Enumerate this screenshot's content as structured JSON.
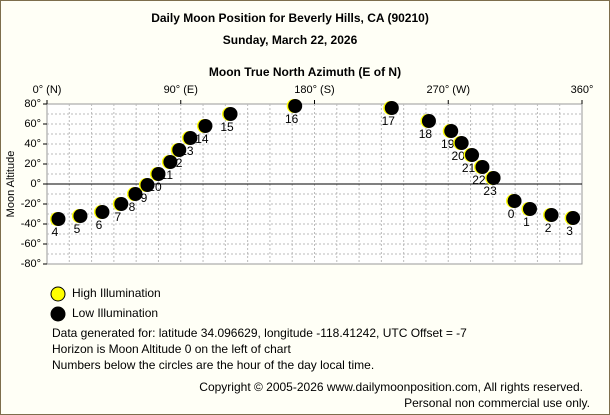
{
  "chart_data": {
    "type": "scatter",
    "title": "Daily Moon Position for Beverly Hills, CA (90210)",
    "subtitle": "Sunday, March 22, 2026",
    "x_label": "Moon True North Azimuth (E of N)",
    "y_label": "Moon Altitude",
    "xlim": [
      0,
      360
    ],
    "ylim": [
      -80,
      80
    ],
    "xticks": [
      {
        "value": 0,
        "label": "0° (N)"
      },
      {
        "value": 90,
        "label": "90° (E)"
      },
      {
        "value": 180,
        "label": "180° (S)"
      },
      {
        "value": 270,
        "label": "270° (W)"
      },
      {
        "value": 360,
        "label": "360°"
      }
    ],
    "yticks": [
      {
        "value": 80,
        "label": "80°"
      },
      {
        "value": 60,
        "label": "60°"
      },
      {
        "value": 40,
        "label": "40°"
      },
      {
        "value": 20,
        "label": "20°"
      },
      {
        "value": 0,
        "label": "0°"
      },
      {
        "value": -20,
        "label": "-20°"
      },
      {
        "value": -40,
        "label": "-40°"
      },
      {
        "value": -60,
        "label": "-60°"
      },
      {
        "value": -80,
        "label": "-80°"
      }
    ],
    "xgrid": [
      15,
      30,
      45,
      60,
      75,
      90,
      105,
      120,
      135,
      150,
      165,
      180,
      195,
      210,
      225,
      240,
      255,
      270,
      285,
      300,
      315,
      330,
      345
    ],
    "ygrid": [
      70,
      60,
      50,
      40,
      30,
      20,
      10,
      -10,
      -20,
      -30,
      -40,
      -50,
      -60,
      -70
    ],
    "horizon": 0,
    "legend": [
      {
        "name": "High Illumination",
        "color": "#ffff00"
      },
      {
        "name": "Low Illumination",
        "color": "#000000"
      }
    ],
    "points": {
      "labels": [
        "4",
        "5",
        "6",
        "7",
        "8",
        "9",
        "10",
        "11",
        "12",
        "13",
        "14",
        "15",
        "16",
        "17",
        "18",
        "19",
        "20",
        "21",
        "22",
        "23",
        "0",
        "1",
        "2",
        "3"
      ],
      "x": [
        6.7,
        21.5,
        36.3,
        49,
        58.5,
        66.6,
        74,
        82,
        88,
        95.5,
        105.6,
        122.5,
        166,
        231,
        256,
        271,
        278,
        285,
        292,
        299.5,
        313.6,
        324,
        338.5,
        353
      ],
      "y": [
        -35,
        -32,
        -28,
        -20,
        -10,
        -1,
        10,
        22,
        34,
        46,
        58,
        70,
        78,
        76,
        63,
        53,
        41,
        29,
        17,
        6,
        -17,
        -25,
        -31,
        -34
      ]
    },
    "notes": [
      "Data generated for: latitude 34.096629, longitude -118.41242, UTC Offset = -7",
      "Horizon is Moon Altitude 0 on the left of chart",
      "Numbers below the circles are the hour of the day local time."
    ],
    "copyright": [
      "Copyright © 2005-2026 www.dailymoonposition.com, All rights reserved.",
      "Personal non commercial use only."
    ]
  }
}
